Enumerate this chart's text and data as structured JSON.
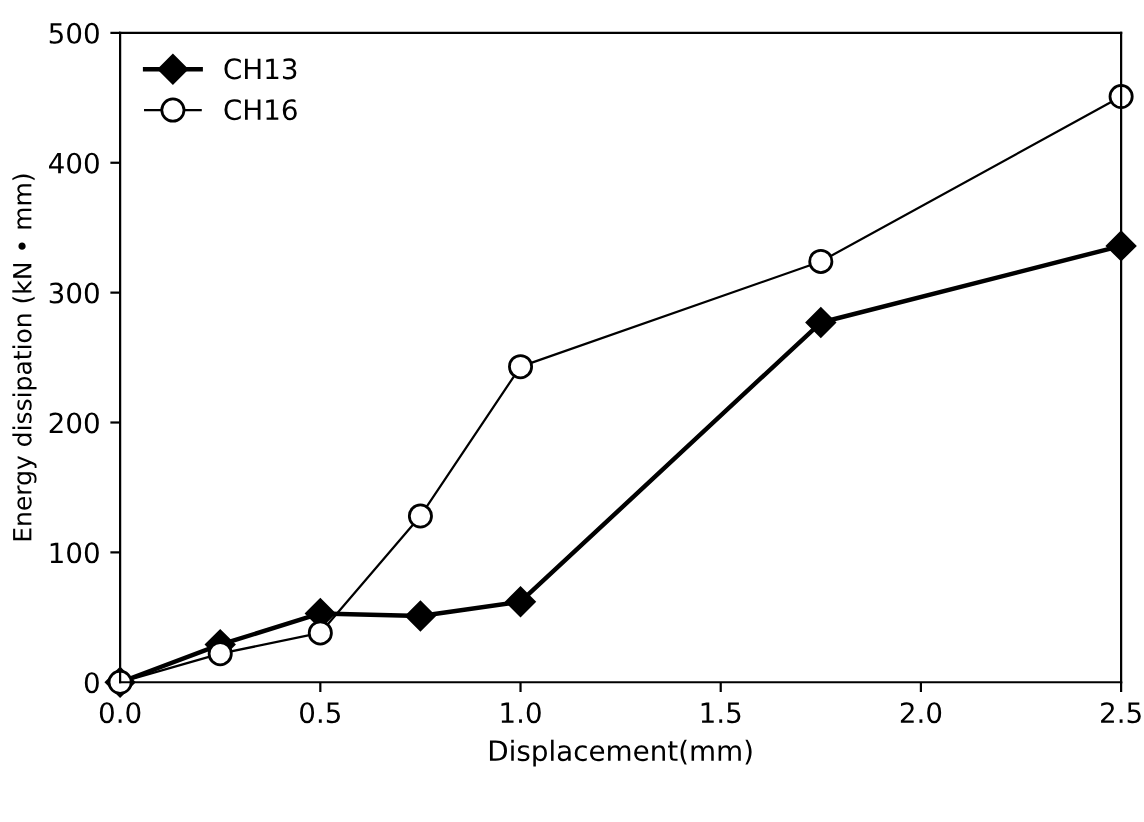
{
  "chart_data": {
    "type": "line",
    "xlabel": "Displacement(mm)",
    "ylabel": "Energy dissipation (kN • mm)",
    "x": [
      0,
      0.25,
      0.5,
      0.75,
      1.0,
      1.75,
      2.5
    ],
    "series": [
      {
        "name": "CH13",
        "color": "#000000",
        "marker": "diamond",
        "values": [
          0,
          29,
          53,
          51,
          62,
          277,
          336
        ]
      },
      {
        "name": "CH16",
        "color": "#000000",
        "marker": "circle",
        "values": [
          0,
          22,
          38,
          128,
          243,
          324,
          451
        ]
      }
    ],
    "xlim": [
      0,
      2.5
    ],
    "ylim": [
      0,
      500
    ],
    "xticks": [
      {
        "value": 0,
        "label": "0.0"
      },
      {
        "value": 0.5,
        "label": "0.5"
      },
      {
        "value": 1.0,
        "label": "1.0"
      },
      {
        "value": 1.5,
        "label": "1.5"
      },
      {
        "value": 2.0,
        "label": "2.0"
      },
      {
        "value": 2.5,
        "label": "2.5"
      }
    ],
    "yticks": [
      0,
      100,
      200,
      300,
      400,
      500
    ],
    "legend": "top left",
    "line_style": "solid"
  }
}
